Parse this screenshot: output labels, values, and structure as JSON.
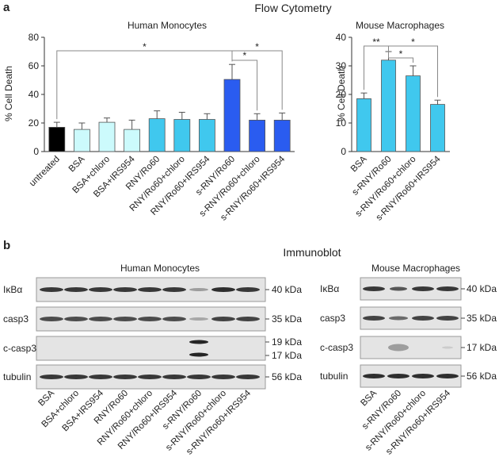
{
  "panel_a": {
    "letter": "a",
    "section_title": "Flow Cytometry"
  },
  "panel_b": {
    "letter": "b",
    "section_title": "Immunoblot"
  },
  "chart_data": [
    {
      "type": "bar",
      "title": "Human Monocytes",
      "ylabel": "% Cell Death",
      "xlabel": "",
      "ylim": [
        0,
        80
      ],
      "yticks": [
        0,
        20,
        40,
        60,
        80
      ],
      "categories": [
        "untreated",
        "BSA",
        "BSA+chloro",
        "BSA+IRS954",
        "RNY/Ro60",
        "RNY/Ro60+chloro",
        "RNY/Ro60+IRS954",
        "s-RNY/Ro60",
        "s-RNY/Ro60+chloro",
        "s-RNY/Ro60+IRS954"
      ],
      "values": [
        17,
        15.5,
        20.5,
        15.5,
        23,
        22.5,
        22.5,
        50.5,
        22,
        22
      ],
      "errors": [
        3.5,
        4.5,
        3,
        6.5,
        5.5,
        5,
        4,
        10.5,
        4.5,
        5
      ],
      "colors": [
        "#000000",
        "#ccfafc",
        "#ccfafc",
        "#ccfafc",
        "#40c8ee",
        "#40c8ee",
        "#40c8ee",
        "#2a5cf0",
        "#2a5cf0",
        "#2a5cf0"
      ],
      "significance": [
        {
          "from": 0,
          "to": 7,
          "label": "*"
        },
        {
          "from": 7,
          "to": 8,
          "label": "*"
        },
        {
          "from": 7,
          "to": 9,
          "label": "*"
        }
      ]
    },
    {
      "type": "bar",
      "title": "Mouse Macrophages",
      "ylabel": "% Cell Death",
      "xlabel": "",
      "ylim": [
        0,
        40
      ],
      "yticks": [
        0,
        10,
        20,
        30,
        40
      ],
      "categories": [
        "BSA",
        "s-RNY/Ro60",
        "s-RNY/Ro60+chloro",
        "s-RNY/Ro60+IRS954"
      ],
      "values": [
        18.5,
        32,
        26.5,
        16.5
      ],
      "errors": [
        2,
        3,
        3.5,
        1.5
      ],
      "colors": [
        "#40c8ee",
        "#40c8ee",
        "#40c8ee",
        "#40c8ee"
      ],
      "significance": [
        {
          "from": 0,
          "to": 1,
          "label": "**"
        },
        {
          "from": 1,
          "to": 2,
          "label": "*"
        },
        {
          "from": 1,
          "to": 3,
          "label": "*"
        }
      ]
    }
  ],
  "blots": {
    "human": {
      "title": "Human Monocytes",
      "rows": [
        {
          "label": "IκBα",
          "kda": [
            "40 kDa"
          ]
        },
        {
          "label": "casp3",
          "kda": [
            "35 kDa"
          ]
        },
        {
          "label": "c-casp3",
          "kda": [
            "19 kDa",
            "17 kDa"
          ]
        },
        {
          "label": "tubulin",
          "kda": [
            "56 kDa"
          ]
        }
      ],
      "lanes": [
        "BSA",
        "BSA+chloro",
        "BSA+IRS954",
        "RNY/Ro60",
        "RNY/Ro60+chloro",
        "RNY/Ro60+IRS954",
        "s-RNY/Ro60",
        "s-RNY/Ro60+chloro",
        "s-RNY/Ro60+IRS954"
      ]
    },
    "mouse": {
      "title": "Mouse Macrophages",
      "rows": [
        {
          "label": "IκBα",
          "kda": [
            "40 kDa"
          ]
        },
        {
          "label": "casp3",
          "kda": [
            "35 kDa"
          ]
        },
        {
          "label": "c-casp3",
          "kda": [
            "17 kDa"
          ]
        },
        {
          "label": "tubulin",
          "kda": [
            "56 kDa"
          ]
        }
      ],
      "lanes": [
        "BSA",
        "s-RNY/Ro60",
        "s-RNY/Ro60+chloro",
        "s-RNY/Ro60+IRS954"
      ]
    }
  }
}
